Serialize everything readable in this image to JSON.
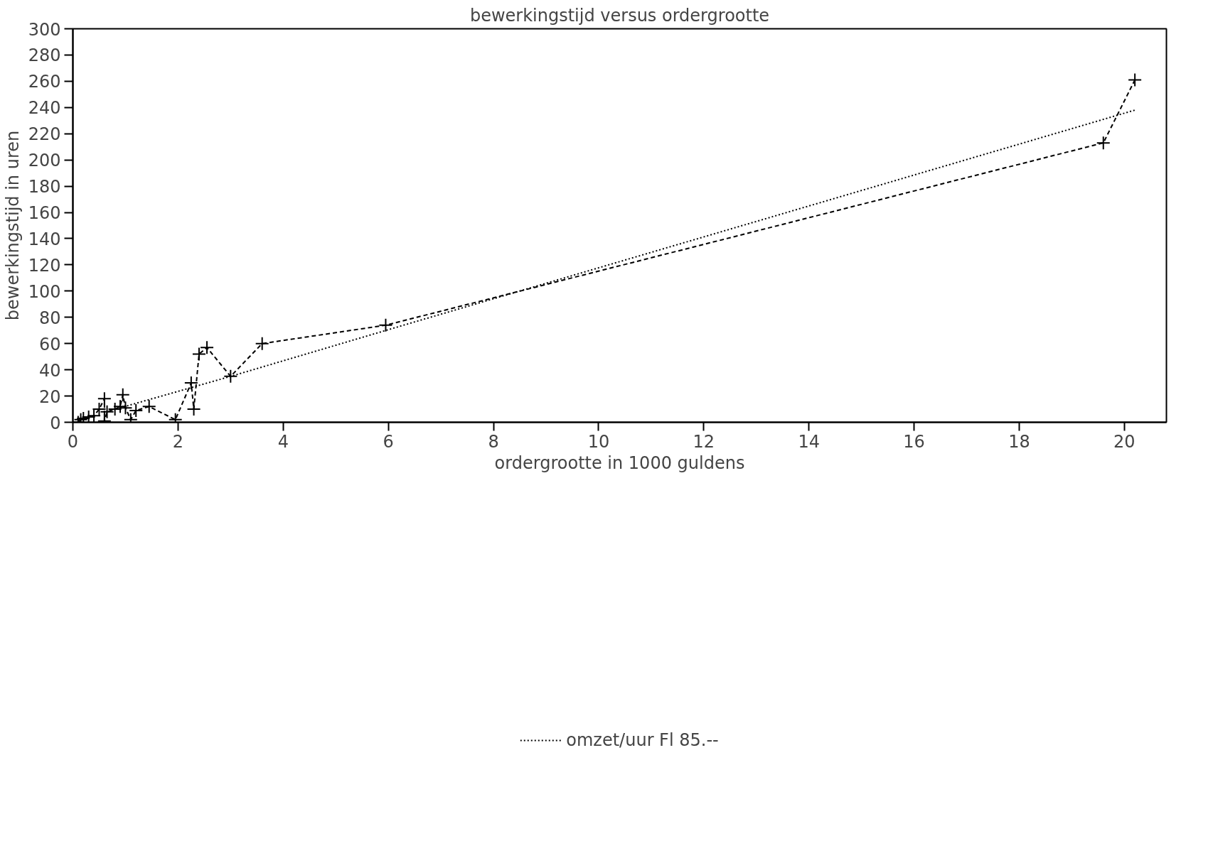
{
  "chart_data": {
    "type": "line",
    "title": "bewerkingstijd versus ordergrootte",
    "xlabel": "ordergrootte in 1000 guldens",
    "ylabel": "bewerkingstijd in uren",
    "series": [
      {
        "color": "#000000",
        "marker": "cross",
        "line_style": "dashed",
        "x": [
          0.1,
          0.15,
          0.2,
          0.3,
          0.4,
          0.5,
          0.6,
          0.6,
          0.65,
          0.8,
          0.9,
          0.95,
          1.0,
          1.1,
          1.2,
          1.45,
          1.95,
          2.25,
          2.3,
          2.4,
          2.55,
          3.0,
          3.6,
          5.95,
          19.6,
          20.2
        ],
        "values": [
          0,
          2,
          3,
          4,
          5,
          10,
          18,
          1,
          8,
          10,
          12,
          21,
          11,
          2,
          9,
          12,
          2,
          30,
          10,
          52,
          57,
          35,
          60,
          74,
          213,
          261
        ]
      },
      {
        "name": "omzet/uur Fl 85.--",
        "color": "#000000",
        "marker": "none",
        "line_style": "dotted",
        "x": [
          0.9,
          3.0,
          6.0,
          20.2
        ],
        "values": [
          11,
          35,
          70.6,
          238
        ]
      }
    ],
    "xlim": [
      0,
      20.8
    ],
    "ylim": [
      0,
      300
    ],
    "xticks": [
      0,
      2,
      4,
      6,
      8,
      10,
      12,
      14,
      16,
      18,
      20
    ],
    "yticks": [
      0,
      20,
      40,
      60,
      80,
      100,
      120,
      140,
      160,
      180,
      200,
      220,
      240,
      260,
      280,
      300
    ],
    "grid": false,
    "legend": "bottom"
  }
}
